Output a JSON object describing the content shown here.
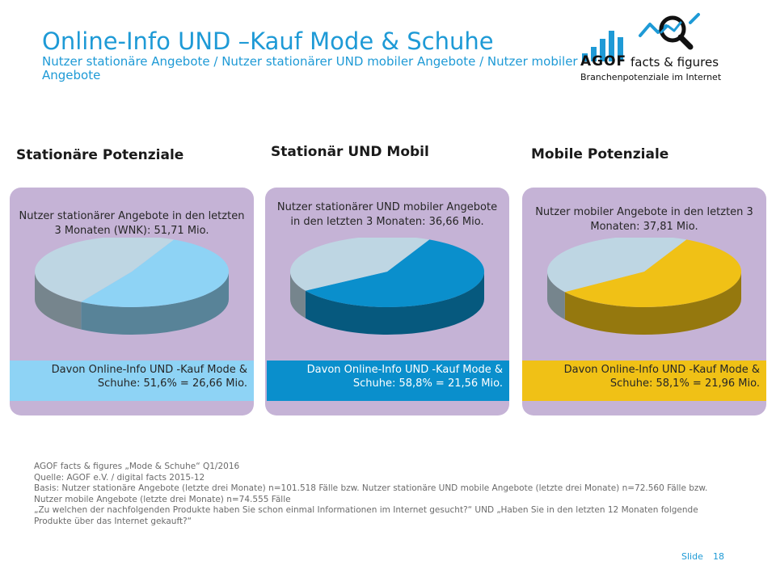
{
  "header": {
    "title": "Online-Info UND –Kauf Mode & Schuhe",
    "subtitle": "Nutzer stationäre Angebote / Nutzer stationärer UND mobiler Angebote / Nutzer mobiler Angebote"
  },
  "logo": {
    "brand": "AGOF",
    "tagline_main": "facts & figures",
    "tagline_sub": "Branchenpotenziale im Internet",
    "icons": [
      "bar-chart-icon",
      "magnifier-icon",
      "trend-line-icon"
    ],
    "accent_color": "#1e9ad6"
  },
  "chart_data": [
    {
      "type": "pie",
      "heading": "Stationäre Potenziale",
      "description": "Nutzer stationärer Angebote in den letzten 3 Monaten (WNK): 51,71 Mio.",
      "result": "Davon Online-Info UND -Kauf Mode & Schuhe: 51,6% = 26,66 Mio.",
      "slices": [
        {
          "value": 51.6,
          "color": "#8ed3f5"
        },
        {
          "value": 48.4,
          "color": "#bed6e3"
        }
      ],
      "highlight_color": "#8ed3f5",
      "result_text_color": "#262626"
    },
    {
      "type": "pie",
      "heading": "Stationär UND Mobil",
      "description": "Nutzer stationärer UND mobiler Angebote in den letzten 3 Monaten: 36,66 Mio.",
      "result": "Davon Online-Info UND -Kauf Mode & Schuhe: 58,8% = 21,56 Mio.",
      "slices": [
        {
          "value": 58.8,
          "color": "#0a8fcc"
        },
        {
          "value": 41.2,
          "color": "#bed6e3"
        }
      ],
      "highlight_color": "#0a8fcc",
      "result_text_color": "#ffffff"
    },
    {
      "type": "pie",
      "heading": "Mobile Potenziale",
      "description": "Nutzer mobiler Angebote in den letzten 3 Monaten: 37,81 Mio.",
      "result": "Davon Online-Info UND -Kauf Mode & Schuhe: 58,1% = 21,96 Mio.",
      "slices": [
        {
          "value": 58.1,
          "color": "#f0c116"
        },
        {
          "value": 41.9,
          "color": "#bed6e3"
        }
      ],
      "highlight_color": "#f0c116",
      "result_text_color": "#262626"
    }
  ],
  "footer": {
    "lines": [
      "AGOF facts & figures „Mode & Schuhe“ Q1/2016",
      "Quelle: AGOF e.V. / digital facts 2015-12",
      "Basis: Nutzer stationäre Angebote (letzte drei Monate) n=101.518 Fälle bzw. Nutzer stationäre UND mobile Angebote (letzte drei Monate) n=72.560 Fälle bzw. Nutzer mobile Angebote (letzte drei Monate) n=74.555 Fälle",
      "„Zu welchen der nachfolgenden Produkte haben Sie schon einmal Informationen im Internet gesucht?“ UND „Haben Sie in den letzten 12 Monaten folgende Produkte über das Internet gekauft?“"
    ],
    "slide_label": "Slide",
    "slide_number": "18"
  }
}
